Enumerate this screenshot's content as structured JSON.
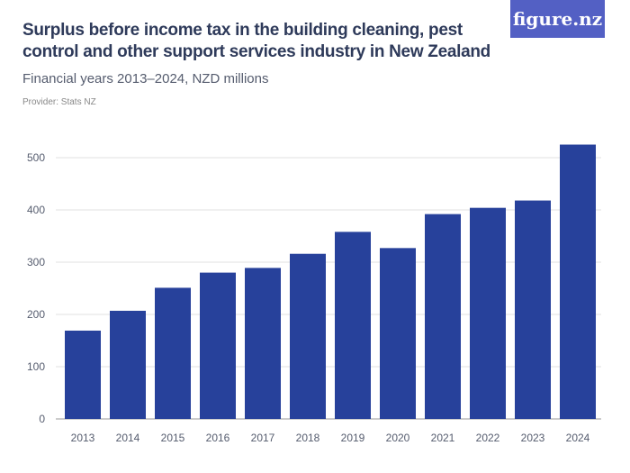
{
  "header": {
    "title": "Surplus before income tax in the building cleaning, pest control and other support services industry in New Zealand",
    "subtitle": "Financial years 2013–2024, NZD millions",
    "provider": "Provider: Stats NZ",
    "logo": "figure.nz"
  },
  "chart_data": {
    "type": "bar",
    "categories": [
      "2013",
      "2014",
      "2015",
      "2016",
      "2017",
      "2018",
      "2019",
      "2020",
      "2021",
      "2022",
      "2023",
      "2024"
    ],
    "values": [
      169,
      207,
      251,
      280,
      289,
      316,
      358,
      327,
      392,
      404,
      418,
      525
    ],
    "ylim": [
      0,
      550
    ],
    "yticks": [
      0,
      100,
      200,
      300,
      400,
      500
    ],
    "grid": true,
    "bar_color": "#27419b"
  }
}
